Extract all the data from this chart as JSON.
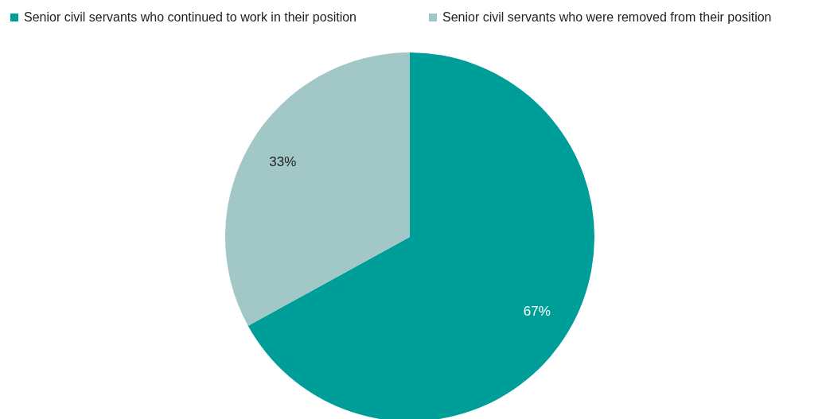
{
  "chart_data": {
    "type": "pie",
    "categories": [
      "Senior civil servants who continued to work in their position",
      "Senior civil servants who were removed from their position"
    ],
    "values": [
      67,
      33
    ],
    "colors": [
      "#009e99",
      "#a2c7c7"
    ],
    "value_labels": [
      "67%",
      "33%"
    ],
    "legend": "top"
  }
}
